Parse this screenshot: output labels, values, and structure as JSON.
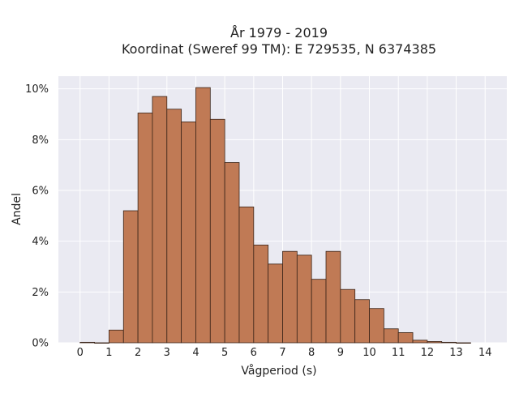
{
  "chart_data": {
    "type": "bar",
    "title_lines": [
      "År 1979 - 2019",
      "Koordinat (Sweref 99 TM): E 729535, N 6374385"
    ],
    "xlabel": "Vågperiod (s)",
    "ylabel": "Andel",
    "xlim": [
      -0.75,
      14.75
    ],
    "ylim": [
      0,
      10.5
    ],
    "x_ticks": [
      0,
      1,
      2,
      3,
      4,
      5,
      6,
      7,
      8,
      9,
      10,
      11,
      12,
      13,
      14
    ],
    "y_ticks": [
      0,
      2,
      4,
      6,
      8,
      10
    ],
    "y_tick_labels": [
      "0%",
      "2%",
      "4%",
      "6%",
      "8%",
      "10%"
    ],
    "bin_width": 0.5,
    "bin_starts": [
      0,
      0.5,
      1,
      1.5,
      2,
      2.5,
      3,
      3.5,
      4,
      4.5,
      5,
      5.5,
      6,
      6.5,
      7,
      7.5,
      8,
      8.5,
      9,
      9.5,
      10,
      10.5,
      11,
      11.5,
      12,
      12.5,
      13
    ],
    "values": [
      0.02,
      0,
      0.5,
      5.2,
      9.05,
      9.7,
      9.2,
      8.7,
      10.05,
      8.8,
      7.1,
      5.35,
      3.85,
      3.1,
      3.6,
      3.45,
      2.5,
      3.6,
      2.1,
      1.7,
      1.35,
      0.55,
      0.4,
      0.1,
      0.05,
      0.02,
      0
    ],
    "grid": true,
    "colors": {
      "bar_fill": "#c07a55",
      "bar_edge": "#3a2418",
      "plot_bg": "#eaeaf2",
      "grid": "#ffffff"
    }
  }
}
